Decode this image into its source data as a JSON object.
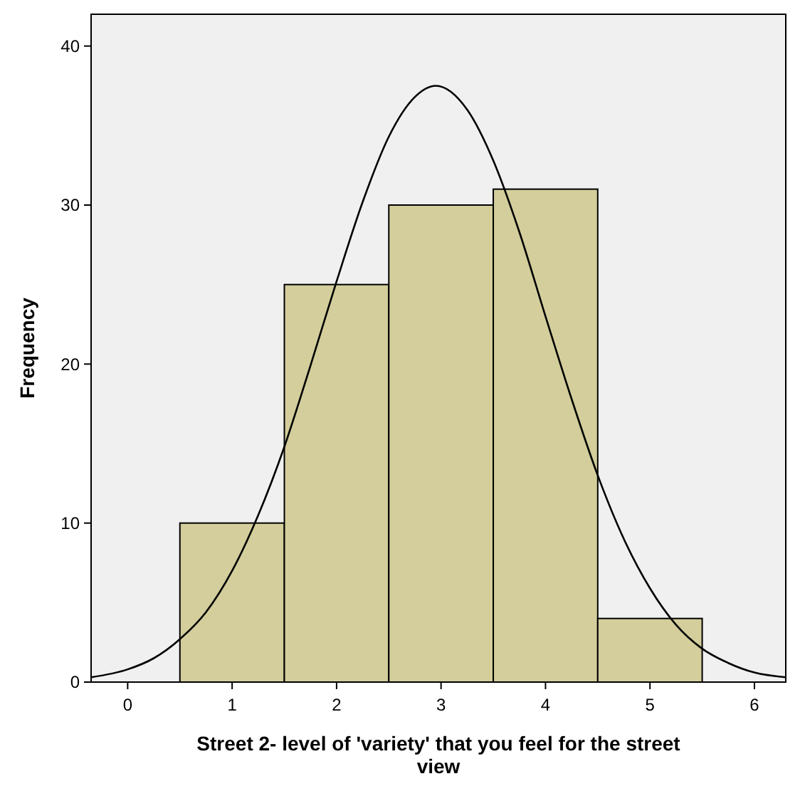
{
  "chart_data": {
    "type": "histogram",
    "xlabel": "Street 2- level of 'variety' that you feel for the street view",
    "ylabel": "Frequency",
    "xlim": [
      -0.35,
      6.3
    ],
    "xticks": [
      0,
      1,
      2,
      3,
      4,
      5,
      6
    ],
    "ylim": [
      0,
      42
    ],
    "yticks": [
      0,
      10,
      20,
      30,
      40
    ],
    "grid": false,
    "series": [
      {
        "color": "#d3ce9b",
        "bins": [
          0.5,
          1.5,
          2.5,
          3.5,
          4.5,
          5.5
        ],
        "values": [
          10,
          25,
          30,
          31,
          4
        ]
      },
      {
        "type": "line",
        "color": "#000000",
        "x": [
          -0.35,
          0,
          0.25,
          0.5,
          0.75,
          1,
          1.25,
          1.5,
          1.75,
          2,
          2.25,
          2.5,
          2.75,
          2.95,
          3.25,
          3.5,
          3.75,
          4,
          4.25,
          4.5,
          4.75,
          5,
          5.25,
          5.5,
          5.75,
          6,
          6.3
        ],
        "values": [
          0.3,
          0.8,
          1.5,
          2.7,
          4.4,
          7,
          10.5,
          14.8,
          19.9,
          25.2,
          30.2,
          34.3,
          36.8,
          37.5,
          36,
          32.8,
          28.3,
          23,
          17.8,
          13,
          9,
          5.9,
          3.6,
          2.1,
          1.2,
          0.6,
          0.3
        ]
      }
    ]
  }
}
